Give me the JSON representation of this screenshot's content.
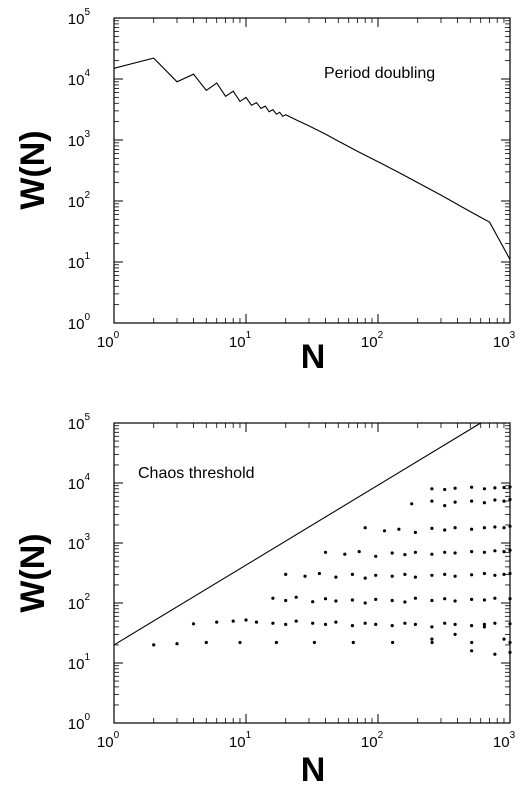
{
  "chart_data": [
    {
      "type": "line",
      "annotation": "Period doubling",
      "xlabel": "N",
      "ylabel": "W(N)",
      "xscale": "log",
      "yscale": "log",
      "xlim": [
        1,
        1000
      ],
      "ylim": [
        1,
        100000
      ],
      "grid": false,
      "x_ticks": [
        "10^0",
        "10^1",
        "10^2",
        "10^3"
      ],
      "y_ticks": [
        "10^0",
        "10^1",
        "10^2",
        "10^3",
        "10^4",
        "10^5"
      ],
      "series": [
        {
          "x": [
            1,
            2,
            3,
            4,
            5,
            6,
            7,
            8,
            9,
            10,
            11,
            12,
            13,
            14,
            15,
            16,
            17,
            18,
            19,
            20,
            25,
            30,
            40,
            50,
            70,
            100,
            150,
            200,
            300,
            500,
            700,
            1000
          ],
          "y": [
            15000,
            22000,
            9000,
            12000,
            6500,
            8600,
            5200,
            6300,
            4300,
            5000,
            3700,
            4100,
            3300,
            3600,
            2900,
            3150,
            2650,
            2850,
            2450,
            2600,
            2050,
            1700,
            1250,
            960,
            650,
            440,
            280,
            200,
            125,
            67,
            45,
            11
          ]
        }
      ]
    },
    {
      "type": "scatter",
      "annotation": "Chaos threshold",
      "xlabel": "N",
      "ylabel": "W(N)",
      "xscale": "log",
      "yscale": "log",
      "xlim": [
        1,
        1000
      ],
      "ylim": [
        1,
        100000
      ],
      "grid": false,
      "x_ticks": [
        "10^0",
        "10^1",
        "10^2",
        "10^3"
      ],
      "y_ticks": [
        "10^0",
        "10^1",
        "10^2",
        "10^3",
        "10^4",
        "10^5"
      ],
      "threshold_line": {
        "x": [
          1,
          600
        ],
        "y": [
          20,
          100000
        ]
      },
      "points": {
        "x": [
          2,
          3,
          5,
          9,
          17,
          33,
          65,
          129,
          257,
          513,
          1000,
          4,
          6,
          8,
          10,
          12,
          16,
          20,
          24,
          32,
          40,
          48,
          64,
          80,
          96,
          128,
          160,
          192,
          256,
          320,
          384,
          512,
          640,
          768,
          1000,
          16,
          20,
          24,
          32,
          40,
          48,
          64,
          80,
          96,
          128,
          160,
          192,
          256,
          320,
          384,
          512,
          640,
          768,
          1000,
          20,
          28,
          36,
          48,
          64,
          80,
          96,
          128,
          160,
          192,
          256,
          320,
          384,
          512,
          640,
          768,
          900,
          1000,
          40,
          56,
          72,
          96,
          128,
          160,
          192,
          256,
          320,
          384,
          512,
          640,
          768,
          900,
          1000,
          80,
          112,
          144,
          192,
          256,
          320,
          384,
          512,
          640,
          768,
          900,
          1000,
          180,
          256,
          320,
          384,
          512,
          640,
          768,
          900,
          1000,
          256,
          320,
          384,
          512,
          640,
          768,
          900,
          1000,
          256,
          384,
          512,
          640,
          768,
          900,
          1000
        ],
        "y": [
          20,
          21,
          22,
          22,
          22,
          22,
          22,
          22,
          22,
          22,
          22,
          45,
          48,
          50,
          52,
          48,
          46,
          44,
          50,
          46,
          44,
          48,
          42,
          46,
          44,
          42,
          46,
          44,
          40,
          46,
          44,
          42,
          44,
          46,
          45,
          120,
          110,
          125,
          105,
          118,
          108,
          112,
          100,
          115,
          110,
          104,
          120,
          110,
          118,
          108,
          115,
          112,
          120,
          118,
          300,
          280,
          310,
          270,
          300,
          260,
          290,
          280,
          300,
          270,
          290,
          300,
          280,
          295,
          310,
          290,
          300,
          310,
          700,
          650,
          720,
          600,
          680,
          640,
          700,
          650,
          700,
          680,
          720,
          700,
          740,
          720,
          760,
          1800,
          1600,
          1700,
          1500,
          1750,
          1650,
          1800,
          1700,
          1800,
          1850,
          1800,
          1900,
          4500,
          5000,
          4200,
          4800,
          5000,
          4700,
          5200,
          5000,
          5300,
          8000,
          7800,
          8200,
          8500,
          8000,
          8300,
          8400,
          8600,
          25,
          30,
          16,
          40,
          14,
          25,
          15
        ]
      }
    }
  ]
}
